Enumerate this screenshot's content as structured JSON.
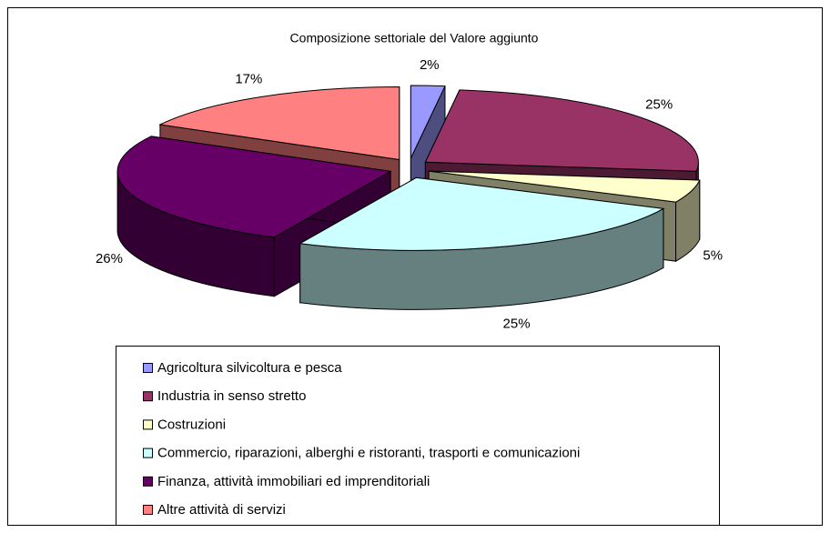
{
  "chart_data": {
    "type": "pie",
    "title": "Composizione settoriale del Valore aggiunto",
    "categories": [
      "Agricoltura silvicoltura e pesca",
      "Industria in senso stretto",
      "Costruzioni",
      "Commercio, riparazioni, alberghi e ristoranti, trasporti e comunicazioni",
      "Finanza, attività immobiliari ed imprenditoriali",
      "Altre attività di servizi"
    ],
    "values": [
      2,
      25,
      5,
      25,
      26,
      17
    ],
    "value_labels": [
      "2%",
      "25%",
      "5%",
      "25%",
      "26%",
      "17%"
    ],
    "colors": [
      "#9999ff",
      "#993366",
      "#ffffcc",
      "#ccffff",
      "#660066",
      "#ff8080"
    ],
    "three_d": true,
    "exploded": true,
    "legend": "bottom"
  }
}
